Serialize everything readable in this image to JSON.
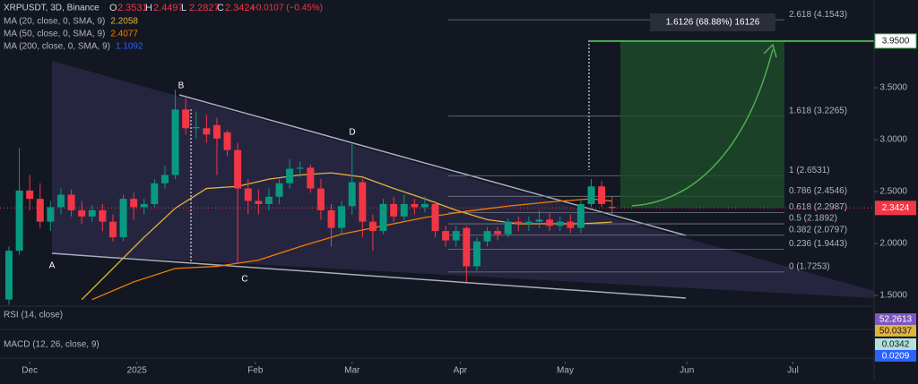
{
  "chart_data": {
    "type": "candlestick",
    "title": "XRPUSDT, 3D, Binance",
    "ohlc": [
      {
        "label": "O",
        "value": 2.3531
      },
      {
        "label": "H",
        "value": 2.4497
      },
      {
        "label": "L",
        "value": 2.2827
      },
      {
        "label": "C",
        "value": 2.3424
      }
    ],
    "change": "−0.0107 (−0.45%)",
    "up_color": "#089981",
    "down_color": "#f23645",
    "open": [
      1.46,
      1.93,
      2.51,
      2.43,
      2.21,
      2.35,
      2.47,
      2.32,
      2.26,
      2.32,
      2.21,
      2.06,
      2.43,
      2.35,
      2.38,
      2.58,
      2.66,
      3.29,
      3.11,
      3.11,
      3.14,
      3.07,
      2.9,
      2.53,
      2.41,
      2.38,
      2.45,
      2.58,
      2.72,
      2.73,
      2.53,
      2.32,
      2.15,
      2.36,
      2.59,
      2.21,
      2.12,
      2.38,
      2.26,
      2.38,
      2.35,
      2.38,
      2.12,
      2.03,
      2.15,
      1.78,
      2.02,
      2.12,
      2.09,
      2.21,
      2.19,
      2.21,
      2.23,
      2.17,
      2.21,
      2.15,
      2.38,
      2.55,
      2.3531
    ],
    "high": [
      1.97,
      2.92,
      2.66,
      2.58,
      2.41,
      2.53,
      2.52,
      2.41,
      2.37,
      2.38,
      2.28,
      2.47,
      2.49,
      2.43,
      2.62,
      2.75,
      3.48,
      3.4,
      3.27,
      3.24,
      3.21,
      3.09,
      2.97,
      2.62,
      2.52,
      2.53,
      2.62,
      2.81,
      2.79,
      2.76,
      2.62,
      2.38,
      2.41,
      2.97,
      2.62,
      2.28,
      2.43,
      2.45,
      2.47,
      2.43,
      2.45,
      2.41,
      2.17,
      2.17,
      2.17,
      2.06,
      2.16,
      2.16,
      2.24,
      2.26,
      2.26,
      2.32,
      2.29,
      2.26,
      2.28,
      2.41,
      2.62,
      2.6,
      2.4497
    ],
    "low": [
      1.41,
      1.89,
      2.32,
      2.15,
      2.12,
      2.28,
      2.26,
      2.19,
      2.21,
      2.12,
      2.02,
      2.02,
      2.23,
      2.28,
      2.35,
      2.53,
      2.62,
      3.05,
      3.01,
      2.97,
      2.66,
      2.84,
      1.8,
      2.28,
      2.28,
      2.32,
      2.38,
      2.53,
      2.64,
      2.49,
      2.23,
      1.97,
      2.09,
      2.28,
      2.06,
      1.93,
      2.09,
      2.21,
      2.22,
      2.28,
      2.3,
      2.06,
      1.97,
      1.97,
      1.63,
      1.74,
      1.97,
      2.03,
      2.06,
      2.12,
      2.12,
      2.15,
      2.12,
      2.12,
      2.1,
      2.1,
      2.35,
      2.35,
      2.2827
    ],
    "close": [
      1.93,
      2.51,
      2.43,
      2.21,
      2.35,
      2.47,
      2.32,
      2.26,
      2.32,
      2.21,
      2.06,
      2.43,
      2.35,
      2.38,
      2.58,
      2.66,
      3.29,
      3.11,
      3.12,
      3.05,
      3.01,
      2.9,
      2.53,
      2.41,
      2.38,
      2.45,
      2.58,
      2.72,
      2.73,
      2.53,
      2.32,
      2.15,
      2.36,
      2.59,
      2.21,
      2.12,
      2.38,
      2.26,
      2.38,
      2.35,
      2.38,
      2.12,
      2.03,
      2.12,
      1.78,
      2.02,
      2.12,
      2.09,
      2.21,
      2.19,
      2.21,
      2.23,
      2.17,
      2.21,
      2.15,
      2.38,
      2.55,
      2.38,
      2.3424
    ],
    "series": [
      {
        "name": "MA (20, close, 0, SMA, 9)",
        "color": "#e2b33c",
        "last": 2.2058,
        "x": [
          7,
          10,
          13,
          16,
          19,
          22,
          25,
          28,
          31,
          34,
          37,
          40,
          43,
          46,
          49,
          52,
          55,
          58
        ],
        "values": [
          1.46,
          1.76,
          2.06,
          2.34,
          2.53,
          2.55,
          2.62,
          2.66,
          2.68,
          2.64,
          2.53,
          2.43,
          2.32,
          2.23,
          2.19,
          2.19,
          2.19,
          2.2058
        ]
      },
      {
        "name": "MA (50, close, 0, SMA, 9)",
        "color": "#f57c00",
        "last": 2.4077,
        "x": [
          8,
          12,
          16,
          20,
          24,
          28,
          32,
          36,
          40,
          44,
          48,
          52,
          56,
          58
        ],
        "values": [
          1.46,
          1.63,
          1.76,
          1.78,
          1.84,
          1.97,
          2.09,
          2.17,
          2.25,
          2.31,
          2.36,
          2.4,
          2.43,
          2.4077
        ]
      },
      {
        "name": "MA (200, close, 0, SMA, 9)",
        "color": "#2962ff",
        "last": 1.1092
      }
    ],
    "ylim": [
      1.414,
      4.345
    ],
    "yticks": [
      {
        "value": 1.5,
        "label": "1.5000"
      },
      {
        "value": 2,
        "label": "2.0000"
      },
      {
        "value": 2.5,
        "label": "2.5000"
      },
      {
        "value": 3,
        "label": "3.0000"
      },
      {
        "value": 3.5,
        "label": "3.5000"
      }
    ],
    "xlim": [
      -0.86,
      83.2
    ],
    "xticks": [
      {
        "value": 2,
        "label": "Dec"
      },
      {
        "value": 12.3,
        "label": "2025"
      },
      {
        "value": 23.7,
        "label": "Feb"
      },
      {
        "value": 33,
        "label": "Mar"
      },
      {
        "value": 43.4,
        "label": "Apr"
      },
      {
        "value": 53.5,
        "label": "May"
      },
      {
        "value": 65.2,
        "label": "Jun"
      },
      {
        "value": 75.4,
        "label": "Jul"
      }
    ],
    "fib": [
      {
        "label": "0 (1.7253)",
        "value": 1.7253
      },
      {
        "label": "0.236 (1.9443)",
        "value": 1.9443
      },
      {
        "label": "0.382 (2.0797)",
        "value": 2.0797
      },
      {
        "label": "0.5 (2.1892)",
        "value": 2.1892
      },
      {
        "label": "0.618 (2.2987)",
        "value": 2.2987
      },
      {
        "label": "0.786 (2.4546)",
        "value": 2.4546
      },
      {
        "label": "1 (2.6531)",
        "value": 2.6531
      },
      {
        "label": "1.618 (3.2265)",
        "value": 3.2265
      },
      {
        "label": "2.618 (4.1543)",
        "value": 4.1543
      }
    ],
    "target": {
      "value": 3.95,
      "label": "3.9500"
    },
    "last_price": {
      "value": 2.3424,
      "label": "2.3424"
    },
    "measure": "1.6126 (68.88%) 16126",
    "points": [
      "A",
      "B",
      "C",
      "D"
    ],
    "rsi": {
      "label": "RSI (14, close)",
      "value": 52.2613,
      "ma": 50.0337
    },
    "macd": {
      "label": "MACD (12, 26, close, 9)",
      "value": 0.0342,
      "signal": 0.0209
    }
  }
}
